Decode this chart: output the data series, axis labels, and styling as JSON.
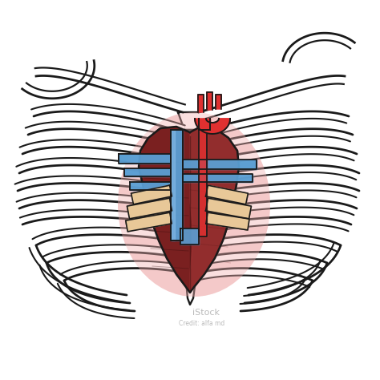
{
  "bg_color": "#ffffff",
  "line_color": "#1a1a1a",
  "line_width": 2.0,
  "heart_dark": "#7a2020",
  "heart_mid": "#a03535",
  "heart_light": "#c05050",
  "heart_pale": "#f0b0b0",
  "aorta_red": "#e03030",
  "aorta_light": "#f07070",
  "vessel_blue": "#5a9fd4",
  "vessel_blue_light": "#8abfea",
  "bone_tan": "#e8c898",
  "bone_tan_dark": "#c8a878",
  "rib_fill": "#ffffff",
  "sternum_fill": "#ffffff"
}
